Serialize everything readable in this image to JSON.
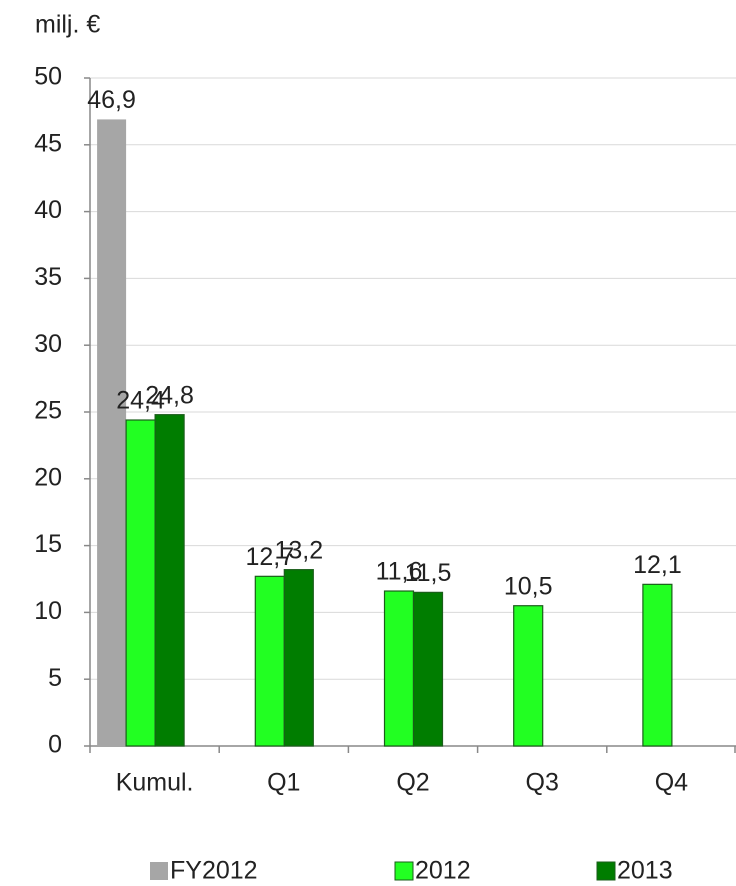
{
  "chart_data": {
    "type": "bar",
    "y_label": "milj. €",
    "categories": [
      "Kumul.",
      "Q1",
      "Q2",
      "Q3",
      "Q4"
    ],
    "series": [
      {
        "name": "FY2012",
        "color": "#a6a6a6",
        "values": [
          46.9,
          null,
          null,
          null,
          null
        ],
        "value_labels": [
          "46,9",
          null,
          null,
          null,
          null
        ]
      },
      {
        "name": "2012",
        "color": "#22ff22",
        "values": [
          24.4,
          12.7,
          11.6,
          10.5,
          12.1
        ],
        "value_labels": [
          "24,4",
          "12,7",
          "11,6",
          "10,5",
          "12,1"
        ]
      },
      {
        "name": "2013",
        "color": "#007d00",
        "values": [
          24.8,
          13.2,
          11.5,
          null,
          null
        ],
        "value_labels": [
          "24,8",
          "13,2",
          "11,5",
          null,
          null
        ]
      }
    ],
    "ylim": [
      0,
      50
    ],
    "yticks": [
      0,
      5,
      10,
      15,
      20,
      25,
      30,
      35,
      40,
      45,
      50
    ],
    "grid": true,
    "legend": "bottom"
  }
}
